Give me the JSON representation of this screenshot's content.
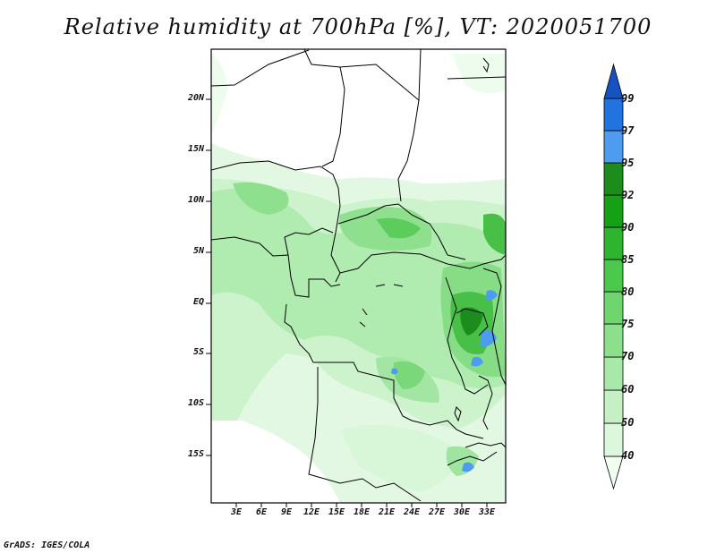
{
  "title": "Relative humidity at 700hPa [%], VT: 2020051700",
  "credit": "GrADS: IGES/COLA",
  "map": {
    "variable": "Relative humidity",
    "level": "700hPa",
    "units": "%",
    "valid_time": "2020051700",
    "lat_labels": [
      "20N",
      "15N",
      "10N",
      "5N",
      "EQ",
      "5S",
      "10S",
      "15S"
    ],
    "lon_labels": [
      "3E",
      "6E",
      "9E",
      "12E",
      "15E",
      "18E",
      "21E",
      "24E",
      "27E",
      "30E",
      "33E"
    ]
  },
  "colorbar": {
    "levels": [
      "40",
      "50",
      "60",
      "70",
      "75",
      "80",
      "85",
      "90",
      "92",
      "95",
      "97",
      "99"
    ],
    "colors": [
      "#f0fff0",
      "#dcf8dc",
      "#c4f0c4",
      "#a8e8a8",
      "#8ce08c",
      "#6fd66f",
      "#4cc84c",
      "#2eb42e",
      "#16a016",
      "#1c8c1c",
      "#4e9cf0",
      "#2272e0",
      "#1652c0"
    ]
  }
}
